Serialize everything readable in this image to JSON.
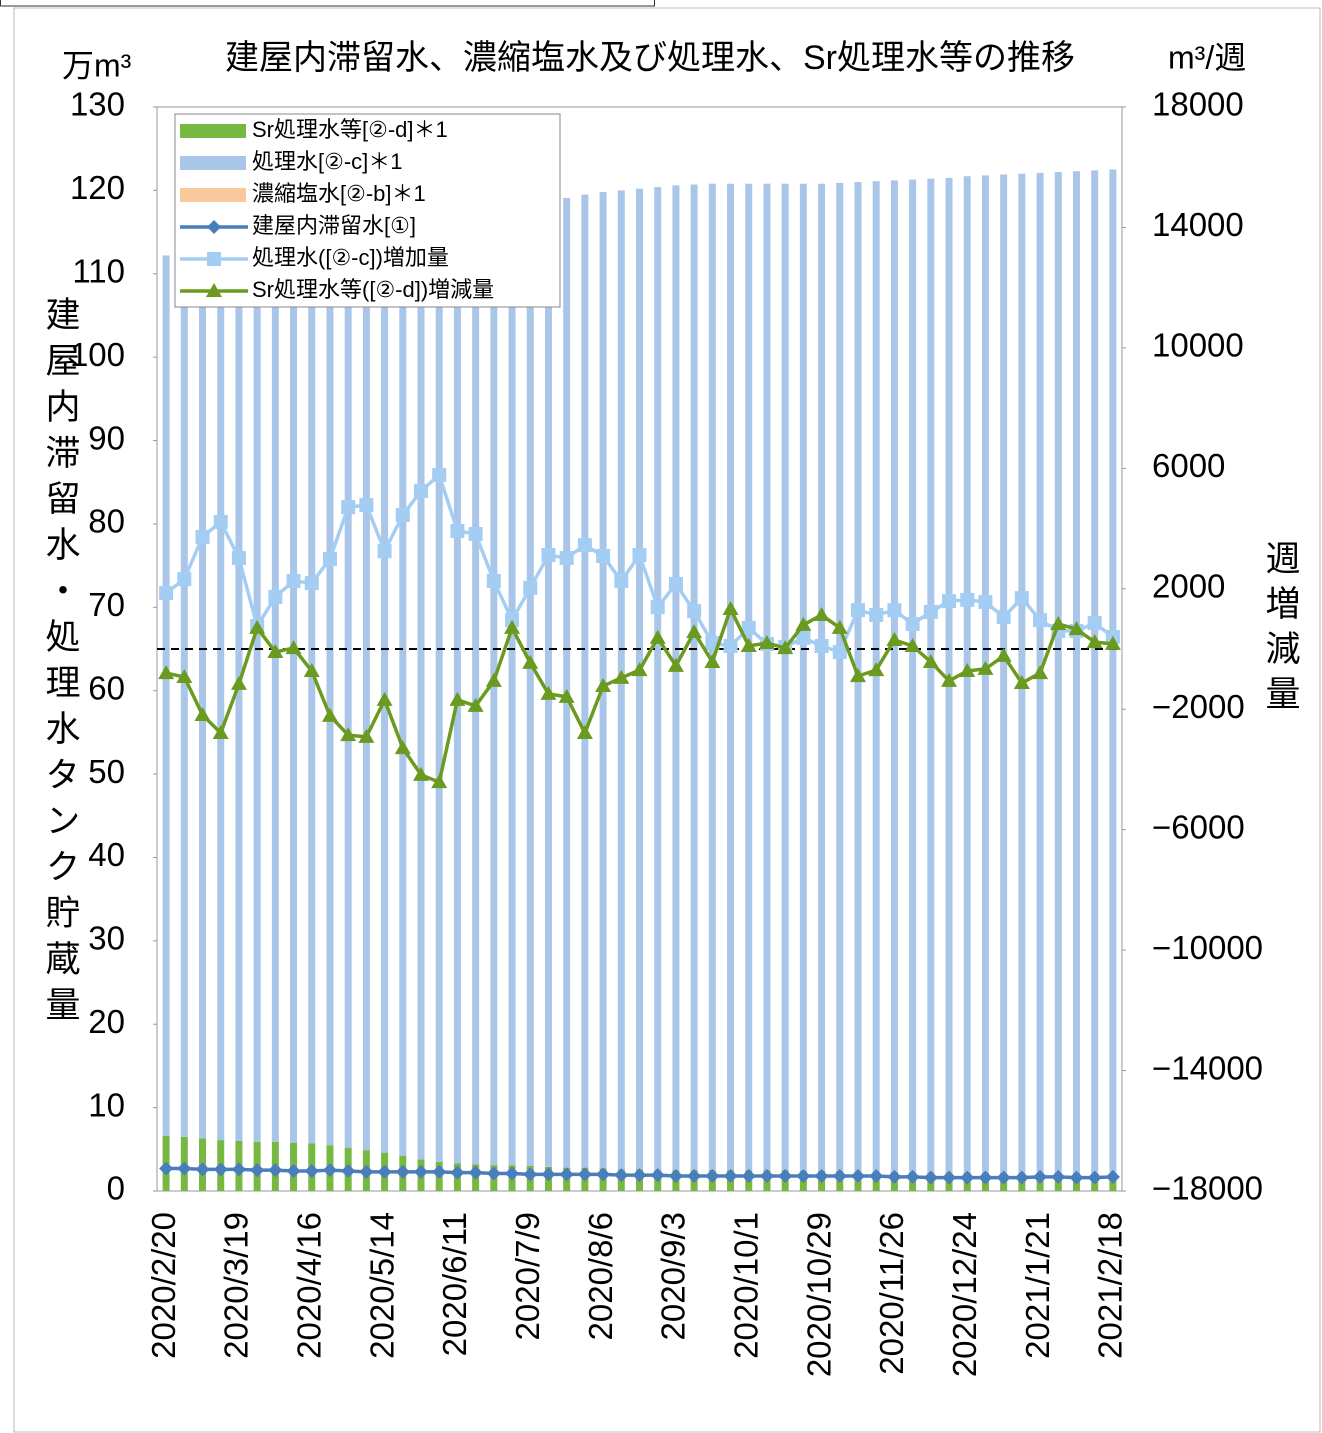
{
  "chart_data": {
    "type": "bar",
    "title": "建屋内滞留水、濃縮塩水及び処理水、Sr処理水等の推移",
    "y_unit": "万m³",
    "y2_unit": "m³/週",
    "y_label": "建屋内滞留水・処理水タンク貯蔵量",
    "y2_label": "週増減量",
    "categories": [
      "2020/2/20",
      null,
      null,
      null,
      "2020/3/19",
      null,
      null,
      null,
      "2020/4/16",
      null,
      null,
      null,
      "2020/5/14",
      null,
      null,
      null,
      "2020/6/11",
      null,
      null,
      null,
      "2020/7/9",
      null,
      null,
      null,
      "2020/8/6",
      null,
      null,
      null,
      "2020/9/3",
      null,
      null,
      null,
      "2020/10/1",
      null,
      null,
      null,
      "2020/10/29",
      null,
      null,
      null,
      "2020/11/26",
      null,
      null,
      null,
      "2020/12/24",
      null,
      null,
      null,
      "2021/1/21",
      null,
      null,
      null,
      "2021/2/18"
    ],
    "ylim": [
      0,
      130
    ],
    "yticks": [
      0,
      10,
      20,
      30,
      40,
      50,
      60,
      70,
      80,
      90,
      100,
      110,
      120,
      130
    ],
    "y2lim": [
      -18000,
      18000
    ],
    "y2ticks": [
      {
        "value": -18000,
        "label": "−18000"
      },
      {
        "value": -14000,
        "label": "−14000"
      },
      {
        "value": -10000,
        "label": "−10000"
      },
      {
        "value": -6000,
        "label": "−6000"
      },
      {
        "value": -2000,
        "label": "−2000"
      },
      2000,
      6000,
      10000,
      14000,
      18000
    ],
    "grid": false,
    "stacked": true,
    "series": [
      {
        "name": "Sr処理水等[②-d]＊1",
        "type": "bar",
        "color": "#77b843",
        "values": [
          6.6,
          6.5,
          6.3,
          6.1,
          6.0,
          5.9,
          5.9,
          5.8,
          5.7,
          5.5,
          5.2,
          4.9,
          4.6,
          4.2,
          3.8,
          3.5,
          3.3,
          3.2,
          3.1,
          3.1,
          3.0,
          2.9,
          2.8,
          2.8,
          2.7,
          2.6,
          2.6,
          2.5,
          2.5,
          2.5,
          2.5,
          2.5,
          2.5,
          2.5,
          2.5,
          2.4,
          2.4,
          2.4,
          2.3,
          2.3,
          2.3,
          2.2,
          2.2,
          2.2,
          2.2,
          2.1,
          2.1,
          2.1,
          2.1,
          2.1,
          2.1,
          2.0,
          2.0
        ]
      },
      {
        "name": "処理水[②-c]＊1",
        "type": "bar",
        "color": "#a9c6e8",
        "values": [
          105.6,
          106.1,
          106.7,
          107.3,
          107.8,
          108.3,
          108.7,
          109.1,
          109.5,
          110.0,
          110.6,
          111.2,
          111.8,
          112.5,
          113.2,
          113.8,
          114.3,
          114.7,
          115.1,
          115.4,
          115.7,
          116.0,
          116.3,
          116.7,
          117.1,
          117.4,
          117.6,
          117.9,
          118.1,
          118.2,
          118.3,
          118.3,
          118.3,
          118.3,
          118.3,
          118.4,
          118.4,
          118.5,
          118.7,
          118.8,
          118.9,
          119.1,
          119.2,
          119.3,
          119.5,
          119.7,
          119.8,
          119.9,
          120.0,
          120.1,
          120.2,
          120.4,
          120.5
        ]
      },
      {
        "name": "濃縮塩水[②-b]＊1",
        "type": "bar",
        "color": "#f9c99b",
        "values": [
          0,
          0,
          0,
          0,
          0,
          0,
          0,
          0,
          0,
          0,
          0,
          0,
          0,
          0,
          0,
          0,
          0,
          0,
          0,
          0,
          0,
          0,
          0,
          0,
          0,
          0,
          0,
          0,
          0,
          0,
          0,
          0,
          0,
          0,
          0,
          0,
          0,
          0,
          0,
          0,
          0,
          0,
          0,
          0,
          0,
          0,
          0,
          0,
          0,
          0,
          0,
          0,
          0
        ]
      },
      {
        "name": "建屋内滞留水[①]",
        "type": "line",
        "marker": "diamond",
        "color": "#4a7dbb",
        "values": [
          2.7,
          2.7,
          2.6,
          2.6,
          2.6,
          2.5,
          2.5,
          2.4,
          2.4,
          2.5,
          2.4,
          2.3,
          2.3,
          2.3,
          2.3,
          2.3,
          2.2,
          2.2,
          2.1,
          2.1,
          2.0,
          2.0,
          2.0,
          2.0,
          2.0,
          1.9,
          1.9,
          1.9,
          1.8,
          1.8,
          1.8,
          1.8,
          1.8,
          1.8,
          1.8,
          1.8,
          1.8,
          1.8,
          1.8,
          1.8,
          1.7,
          1.7,
          1.6,
          1.6,
          1.6,
          1.6,
          1.6,
          1.6,
          1.7,
          1.7,
          1.6,
          1.6,
          1.7
        ]
      },
      {
        "name": "処理水([②-c])増加量",
        "type": "line",
        "marker": "square",
        "axis": "y2",
        "color": "#a3cdf2",
        "values": [
          1860,
          2320,
          3720,
          4220,
          3020,
          760,
          1730,
          2260,
          2190,
          2990,
          4710,
          4780,
          3250,
          4450,
          5250,
          5780,
          3920,
          3820,
          2260,
          960,
          2030,
          3120,
          3020,
          3450,
          3090,
          2260,
          3120,
          1390,
          2160,
          1260,
          200,
          100,
          700,
          170,
          70,
          370,
          100,
          -100,
          1290,
          1130,
          1290,
          830,
          1230,
          1590,
          1630,
          1560,
          1060,
          1690,
          960,
          600,
          600,
          860,
          400
        ]
      },
      {
        "name": "Sr処理水等([②-d])増減量",
        "type": "line",
        "marker": "triangle",
        "axis": "y2",
        "color": "#6a9a1f",
        "values": [
          -800,
          -930,
          -2190,
          -2790,
          -1160,
          700,
          -100,
          30,
          -730,
          -2220,
          -2860,
          -2920,
          -1690,
          -3290,
          -4180,
          -4420,
          -1690,
          -1890,
          -1060,
          700,
          -460,
          -1490,
          -1590,
          -2790,
          -1230,
          -960,
          -700,
          370,
          -560,
          560,
          -430,
          1330,
          100,
          200,
          30,
          800,
          1130,
          700,
          -900,
          -700,
          300,
          100,
          -430,
          -1060,
          -730,
          -660,
          -230,
          -1130,
          -800,
          830,
          660,
          230,
          170
        ]
      }
    ]
  }
}
